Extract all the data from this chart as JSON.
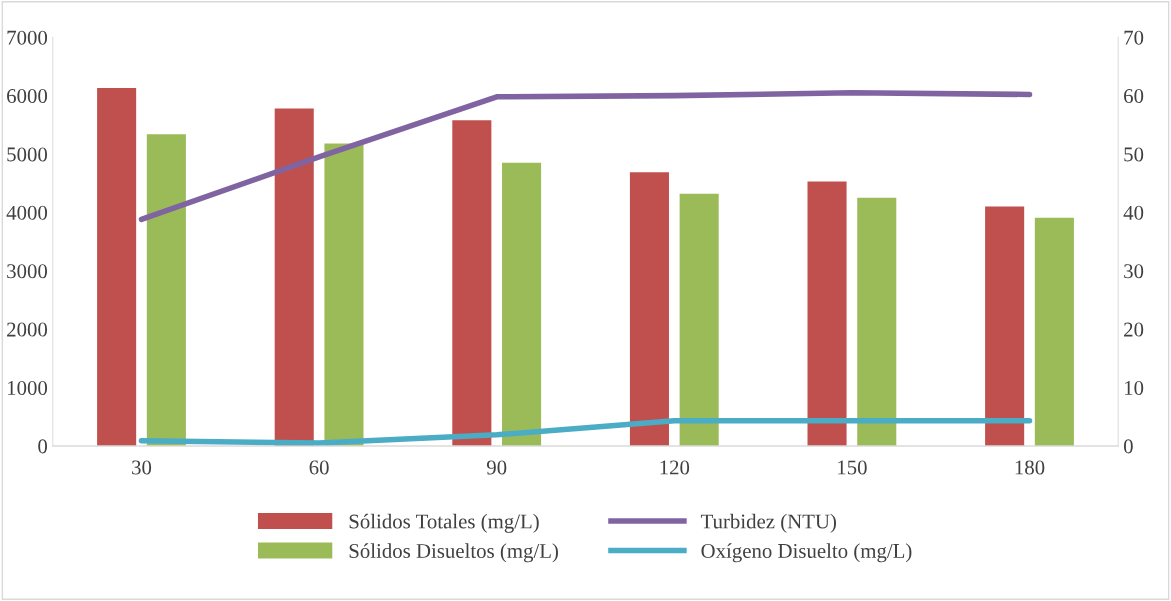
{
  "chart_data": {
    "type": "bar",
    "categories": [
      "30",
      "60",
      "90",
      "120",
      "150",
      "180"
    ],
    "series": [
      {
        "name": "Sólidos Totales (mg/L)",
        "color": "#c0504d",
        "values": [
          6130,
          5780,
          5580,
          4690,
          4530,
          4100
        ]
      },
      {
        "name": "Sólidos Disueltos (mg/L)",
        "color": "#9bbb59",
        "values": [
          5340,
          5180,
          4850,
          4320,
          4250,
          3910
        ]
      },
      {
        "name": "Turbidez (NTU)",
        "type": "line",
        "axis": "y2",
        "color": "#8064a2",
        "values": [
          38.8,
          49.5,
          59.8,
          60.0,
          60.5,
          60.2
        ]
      },
      {
        "name": "Oxígeno Disuelto (mg/L)",
        "type": "line",
        "axis": "y2",
        "color": "#4bacc6",
        "values": [
          0.9,
          0.5,
          1.9,
          4.3,
          4.3,
          4.3
        ]
      }
    ],
    "ylim": [
      0,
      7000
    ],
    "yticks": [
      0,
      1000,
      2000,
      3000,
      4000,
      5000,
      6000,
      7000
    ],
    "y2lim": [
      0,
      70
    ],
    "y2ticks": [
      0,
      10,
      20,
      30,
      40,
      50,
      60,
      70
    ],
    "grid": false,
    "legend": "bottom",
    "marker": "none",
    "line_style": "solid"
  }
}
